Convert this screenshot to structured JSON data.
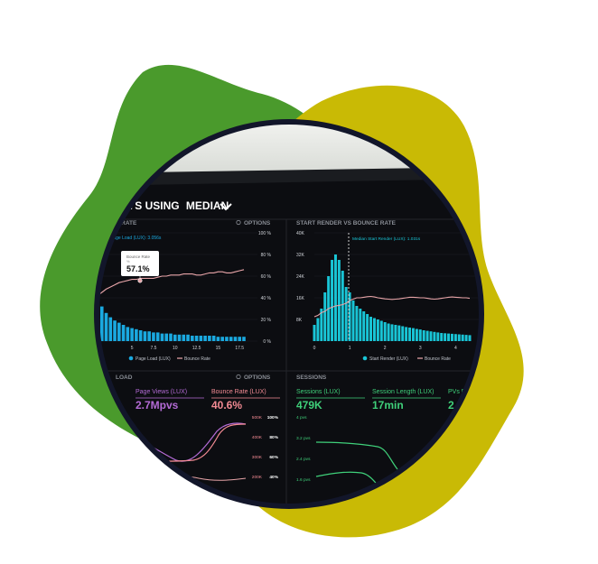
{
  "colors": {
    "blob_green": "#4a9a2c",
    "blob_yellow": "#c9ba05",
    "ring": "#12162a",
    "screen_bg": "#0c0d11",
    "bar_blue": "#1aa9e0",
    "bar_cyan": "#19c5d6",
    "pink_line": "#e7a4a8",
    "green_line": "#49d47a",
    "purple": "#b46bd6",
    "pink_text": "#f28a93",
    "green_text": "#3fd07a"
  },
  "header": {
    "title_part1": "DAYS USING",
    "title_part2": "MEDIAN"
  },
  "panel_left": {
    "title": "E RATE",
    "options": "OPTIONS",
    "series_note": "Page Load (LUX): 3.056s",
    "tooltip_title": "Bounce Rate",
    "tooltip_sub": "%",
    "tooltip_value": "57.1%",
    "y_ticks": [
      "100 %",
      "80 %",
      "60 %",
      "40 %",
      "20 %",
      "0 %"
    ],
    "x_ticks": [
      "1",
      "5",
      "7.5",
      "10",
      "12.5",
      "15",
      "17.5"
    ],
    "legend": [
      "Page Load (LUX)",
      "Bounce Rate"
    ]
  },
  "panel_right": {
    "title": "START RENDER VS BOUNCE RATE",
    "median_note": "Median Start Render (LUX): 1.031s",
    "y_ticks": [
      "40K",
      "32K",
      "24K",
      "16K",
      "8K"
    ],
    "x_ticks": [
      "0",
      "1",
      "2",
      "3",
      "4"
    ],
    "legend": [
      "Start Render (LUX)",
      "Bounce Rate"
    ]
  },
  "bottom_left": {
    "title": "LOAD",
    "options": "OPTIONS",
    "page_views_label": "Page Views (LUX)",
    "page_views_value": "2.7Mpvs",
    "bounce_label": "Bounce Rate (LUX)",
    "bounce_value": "40.6%",
    "axis_left": [
      "500K",
      "400K",
      "300K",
      "200K"
    ],
    "axis_right": [
      "100%",
      "80%",
      "60%",
      "40%"
    ]
  },
  "bottom_right": {
    "title": "SESSIONS",
    "sessions_label": "Sessions (LUX)",
    "sessions_value": "479K",
    "length_label": "Session Length (LUX)",
    "length_value": "17min",
    "pvs_label": "PVs P",
    "pvs_value": "2",
    "y_ticks": [
      "4 pvs",
      "3.2 pvs",
      "2.4 pvs",
      "1.6 pvs"
    ]
  },
  "chart_data": [
    {
      "type": "bar",
      "x": [
        1,
        1.5,
        2,
        2.5,
        3,
        3.5,
        4,
        4.5,
        5,
        5.5,
        6,
        6.5,
        7,
        7.5,
        8,
        8.5,
        9,
        9.5,
        10,
        10.5,
        11,
        11.5,
        12,
        12.5,
        13,
        13.5,
        14,
        14.5,
        15,
        15.5,
        16,
        16.5,
        17,
        17.5,
        18
      ],
      "values": [
        38,
        32,
        26,
        22,
        19,
        17,
        15,
        13,
        12,
        11,
        10,
        9,
        9,
        8,
        8,
        7,
        7,
        7,
        6,
        6,
        6,
        6,
        5,
        5,
        5,
        5,
        5,
        5,
        4,
        4,
        4,
        4,
        4,
        4,
        4
      ],
      "line_values": [
        42,
        45,
        48,
        50,
        52,
        54,
        55,
        56,
        57,
        57,
        58,
        58,
        58,
        58,
        59,
        60,
        60,
        61,
        61,
        61,
        62,
        62,
        62,
        61,
        61,
        62,
        63,
        63,
        64,
        64,
        63,
        63,
        64,
        65,
        66
      ],
      "ylim": [
        0,
        100
      ]
    },
    {
      "type": "bar",
      "x": [
        0,
        0.1,
        0.2,
        0.3,
        0.4,
        0.5,
        0.6,
        0.7,
        0.8,
        0.9,
        1.0,
        1.1,
        1.2,
        1.3,
        1.4,
        1.5,
        1.6,
        1.7,
        1.8,
        1.9,
        2.0,
        2.1,
        2.2,
        2.3,
        2.4,
        2.5,
        2.6,
        2.7,
        2.8,
        2.9,
        3.0,
        3.1,
        3.2,
        3.3,
        3.4,
        3.5,
        3.6,
        3.7,
        3.8,
        3.9,
        4.0,
        4.1,
        4.2,
        4.3,
        4.4
      ],
      "values": [
        6000,
        8500,
        12000,
        18000,
        24000,
        30000,
        32000,
        30000,
        26000,
        20000,
        18000,
        15000,
        13000,
        12000,
        11000,
        10000,
        9000,
        8500,
        8000,
        7500,
        7000,
        6500,
        6200,
        6000,
        5800,
        5500,
        5200,
        5000,
        4800,
        4500,
        4300,
        4000,
        3800,
        3600,
        3400,
        3200,
        3000,
        2900,
        2800,
        2700,
        2600,
        2500,
        2400,
        2300,
        2200
      ],
      "line_values": [
        9000,
        9500,
        10500,
        11000,
        12000,
        12500,
        13000,
        13200,
        13500,
        14000,
        15000,
        15500,
        16000,
        16000,
        16200,
        16400,
        16500,
        16300,
        16000,
        15800,
        15600,
        15500,
        15400,
        15500,
        15600,
        15800,
        16000,
        16200,
        16200,
        16100,
        16000,
        16000,
        15800,
        15600,
        15500,
        15600,
        15800,
        16000,
        16200,
        16300,
        16200,
        16100,
        16000,
        16000,
        15800
      ],
      "ylim": [
        0,
        40000
      ]
    }
  ]
}
